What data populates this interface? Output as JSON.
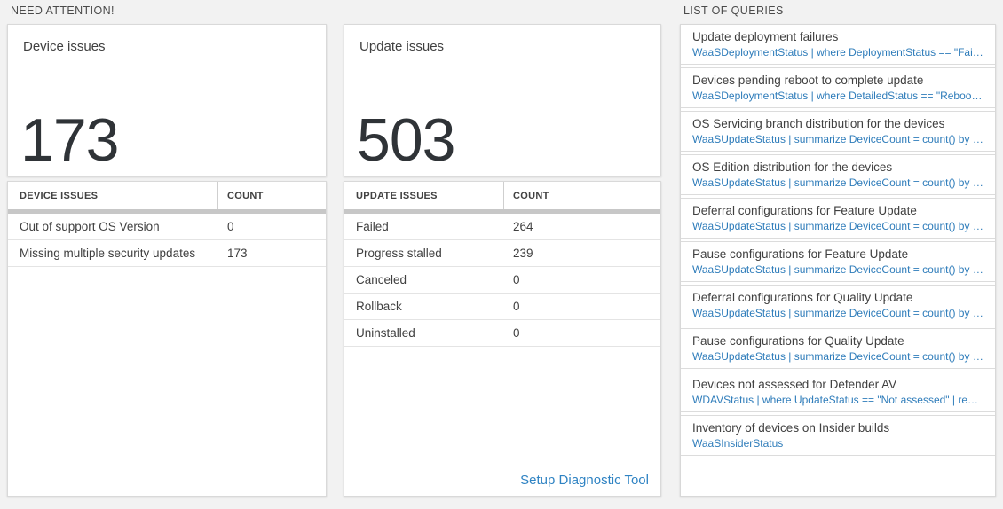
{
  "colors": {
    "background": "#f2f2f2",
    "card_border": "#d9d9d9",
    "separator_bar": "#c7c7c7",
    "query_link_blue": "#2e7cba",
    "action_link_blue": "#2f83c3",
    "big_number_color": "#2f3337"
  },
  "need_attention": {
    "heading": "NEED ATTENTION!",
    "device_card": {
      "title": "Device issues",
      "count": "173"
    },
    "device_table": {
      "columns": {
        "first": "DEVICE ISSUES",
        "second": "COUNT"
      },
      "rows": [
        {
          "label": "Out of support OS Version",
          "count": "0"
        },
        {
          "label": "Missing multiple security updates",
          "count": "173"
        }
      ]
    },
    "update_card": {
      "title": "Update issues",
      "count": "503"
    },
    "update_table": {
      "columns": {
        "first": "UPDATE ISSUES",
        "second": "COUNT"
      },
      "rows": [
        {
          "label": "Failed",
          "count": "264"
        },
        {
          "label": "Progress stalled",
          "count": "239"
        },
        {
          "label": "Canceled",
          "count": "0"
        },
        {
          "label": "Rollback",
          "count": "0"
        },
        {
          "label": "Uninstalled",
          "count": "0"
        }
      ],
      "footer_link": "Setup Diagnostic Tool"
    }
  },
  "queries": {
    "heading": "LIST OF QUERIES",
    "items": [
      {
        "title": "Update deployment failures",
        "query": "WaaSDeploymentStatus | where DeploymentStatus == \"Failed\" |..."
      },
      {
        "title": "Devices pending reboot to complete update",
        "query": "WaaSDeploymentStatus | where DetailedStatus == \"Reboot pend..."
      },
      {
        "title": "OS Servicing branch distribution for the devices",
        "query": "WaaSUpdateStatus | summarize DeviceCount = count() by OSSer..."
      },
      {
        "title": "OS Edition distribution for the devices",
        "query": "WaaSUpdateStatus | summarize DeviceCount = count() by OSEdit..."
      },
      {
        "title": "Deferral configurations for Feature Update",
        "query": "WaaSUpdateStatus | summarize DeviceCount = count() by Featur..."
      },
      {
        "title": "Pause configurations for Feature Update",
        "query": "WaaSUpdateStatus | summarize DeviceCount = count() by Featur..."
      },
      {
        "title": "Deferral configurations for Quality Update",
        "query": "WaaSUpdateStatus | summarize DeviceCount = count() by Qualit..."
      },
      {
        "title": "Pause configurations for Quality Update",
        "query": "WaaSUpdateStatus | summarize DeviceCount = count() by Qualit..."
      },
      {
        "title": "Devices not assessed for Defender AV",
        "query": "WDAVStatus | where UpdateStatus == \"Not assessed\" | render ta..."
      },
      {
        "title": "Inventory of devices on Insider builds",
        "query": "WaaSInsiderStatus"
      }
    ]
  }
}
